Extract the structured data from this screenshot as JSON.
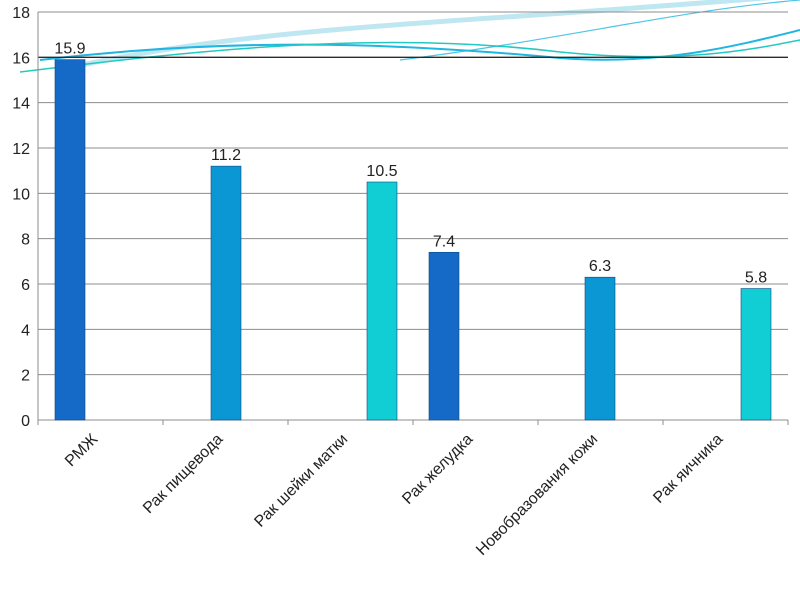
{
  "chart_data": {
    "type": "bar",
    "categories": [
      "РМЖ",
      "Рак пищевода",
      "Рак шейки матки",
      "Рак желудка",
      "Новобразования кожи",
      "Рак яичника"
    ],
    "values": [
      15.9,
      11.2,
      10.5,
      7.4,
      6.3,
      5.8
    ],
    "data_labels": [
      "15.9",
      "11.2",
      "10.5",
      "7.4",
      "6.3",
      "5.8"
    ],
    "ylim": [
      0,
      18
    ],
    "yticks": [
      0,
      2,
      4,
      6,
      8,
      10,
      12,
      14,
      16,
      18
    ],
    "grid": true,
    "legend": "none",
    "colors": {
      "bar_dark": "#1569c7",
      "bar_mid": "#0b96d4",
      "bar_light": "#11cdd4",
      "grid": "#8c8c8c",
      "grid_strong": "#2a2a2a",
      "wave_1": "#1fb6e0",
      "wave_2": "#22c9c0",
      "wave_3": "#8ad3e6"
    }
  }
}
